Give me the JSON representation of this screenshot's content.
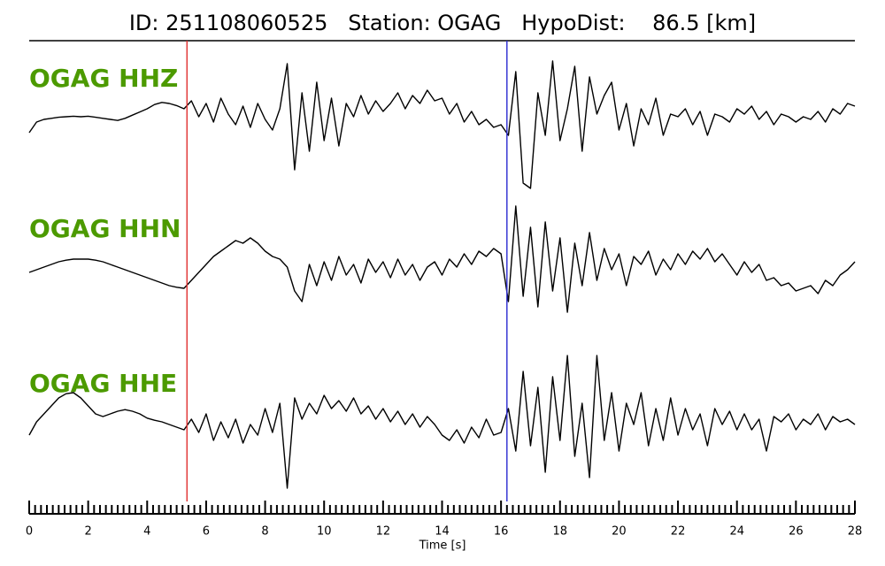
{
  "chart_data": {
    "type": "waveform",
    "title": "ID: 251108060525   Station: OGAG   HypoDist:    86.5 [km]",
    "xlabel": "Time [s]",
    "xlim": [
      0,
      28
    ],
    "xticks": [
      0,
      2,
      4,
      6,
      8,
      10,
      12,
      14,
      16,
      18,
      20,
      22,
      24,
      26,
      28
    ],
    "xminorticks": [
      0.2,
      0.4,
      0.6,
      0.8,
      1.0,
      1.2,
      1.4,
      1.6,
      1.8,
      2.2,
      2.4,
      2.6,
      2.8,
      3.0,
      3.2,
      3.4,
      3.6,
      3.8,
      4.2,
      4.4,
      4.6,
      4.8,
      5.0,
      5.2,
      5.4,
      5.6,
      5.8,
      6.2,
      6.4,
      6.6,
      6.8,
      7.0,
      7.2,
      7.4,
      7.6,
      7.8,
      8.2,
      8.4,
      8.6,
      8.8,
      9.0,
      9.2,
      9.4,
      9.6,
      9.8,
      10.2,
      10.4,
      10.6,
      10.8,
      11.0,
      11.2,
      11.4,
      11.6,
      11.8,
      12.2,
      12.4,
      12.6,
      12.8,
      13.0,
      13.2,
      13.4,
      13.6,
      13.8,
      14.2,
      14.4,
      14.6,
      14.8,
      15.0,
      15.2,
      15.4,
      15.6,
      15.8,
      16.2,
      16.4,
      16.6,
      16.8,
      17.0,
      17.2,
      17.4,
      17.6,
      17.8,
      18.2,
      18.4,
      18.6,
      18.8,
      19.0,
      19.2,
      19.4,
      19.6,
      19.8,
      20.2,
      20.4,
      20.6,
      20.8,
      21.0,
      21.2,
      21.4,
      21.6,
      21.8,
      22.2,
      22.4,
      22.6,
      22.8,
      23.0,
      23.2,
      23.4,
      23.6,
      23.8,
      24.2,
      24.4,
      24.6,
      24.8,
      25.0,
      25.2,
      25.4,
      25.6,
      25.8,
      26.2,
      26.4,
      26.6,
      26.8,
      27.0,
      27.2,
      27.4,
      27.6,
      27.8
    ],
    "label_color": "#4c9a00",
    "picks": [
      {
        "value": 5.35,
        "color": "#e03030"
      },
      {
        "value": 16.2,
        "color": "#2a2ad0"
      }
    ],
    "x": [
      0,
      0.25,
      0.5,
      0.75,
      1,
      1.25,
      1.5,
      1.75,
      2,
      2.25,
      2.5,
      2.75,
      3,
      3.25,
      3.5,
      3.75,
      4,
      4.25,
      4.5,
      4.75,
      5,
      5.25,
      5.5,
      5.75,
      6,
      6.25,
      6.5,
      6.75,
      7,
      7.25,
      7.5,
      7.75,
      8,
      8.25,
      8.5,
      8.75,
      9,
      9.25,
      9.5,
      9.75,
      10,
      10.25,
      10.5,
      10.75,
      11,
      11.25,
      11.5,
      11.75,
      12,
      12.25,
      12.5,
      12.75,
      13,
      13.25,
      13.5,
      13.75,
      14,
      14.25,
      14.5,
      14.75,
      15,
      15.25,
      15.5,
      15.75,
      16,
      16.25,
      16.5,
      16.75,
      17,
      17.25,
      17.5,
      17.75,
      18,
      18.25,
      18.5,
      18.75,
      19,
      19.25,
      19.5,
      19.75,
      20,
      20.25,
      20.5,
      20.75,
      21,
      21.25,
      21.5,
      21.75,
      22,
      22.25,
      22.5,
      22.75,
      23,
      23.25,
      23.5,
      23.75,
      24,
      24.25,
      24.5,
      24.75,
      25,
      25.25,
      25.5,
      25.75,
      26,
      26.25,
      26.5,
      26.75,
      27,
      27.25,
      27.5,
      27.75,
      28
    ],
    "series": [
      {
        "name": "OGAG HHZ",
        "color": "#000000",
        "values": [
          -0.25,
          -0.05,
          0.0,
          0.02,
          0.04,
          0.05,
          0.06,
          0.05,
          0.06,
          0.04,
          0.02,
          0.0,
          -0.02,
          0.02,
          0.08,
          0.14,
          0.2,
          0.28,
          0.32,
          0.3,
          0.26,
          0.2,
          0.35,
          0.05,
          0.3,
          -0.05,
          0.4,
          0.1,
          -0.1,
          0.25,
          -0.15,
          0.3,
          0.0,
          -0.2,
          0.2,
          1.05,
          -0.95,
          0.5,
          -0.6,
          0.7,
          -0.4,
          0.4,
          -0.5,
          0.3,
          0.05,
          0.45,
          0.1,
          0.35,
          0.15,
          0.3,
          0.5,
          0.2,
          0.45,
          0.3,
          0.55,
          0.35,
          0.4,
          0.1,
          0.3,
          -0.05,
          0.15,
          -0.1,
          0.0,
          -0.15,
          -0.1,
          -0.3,
          0.9,
          -1.2,
          -1.3,
          0.5,
          -0.3,
          1.1,
          -0.4,
          0.2,
          1.0,
          -0.6,
          0.8,
          0.1,
          0.45,
          0.7,
          -0.2,
          0.3,
          -0.5,
          0.2,
          -0.1,
          0.4,
          -0.3,
          0.1,
          0.05,
          0.2,
          -0.1,
          0.15,
          -0.3,
          0.1,
          0.05,
          -0.05,
          0.2,
          0.1,
          0.25,
          0.0,
          0.15,
          -0.1,
          0.1,
          0.05,
          -0.05,
          0.05,
          0.0,
          0.15,
          -0.05,
          0.2,
          0.1,
          0.3,
          0.25
        ]
      },
      {
        "name": "OGAG HHN",
        "color": "#000000",
        "values": [
          -0.05,
          0.0,
          0.05,
          0.1,
          0.15,
          0.18,
          0.2,
          0.2,
          0.2,
          0.18,
          0.15,
          0.1,
          0.05,
          0.0,
          -0.05,
          -0.1,
          -0.15,
          -0.2,
          -0.25,
          -0.3,
          -0.33,
          -0.35,
          -0.2,
          -0.05,
          0.1,
          0.25,
          0.35,
          0.45,
          0.55,
          0.5,
          0.6,
          0.5,
          0.35,
          0.25,
          0.2,
          0.05,
          -0.4,
          -0.6,
          0.1,
          -0.3,
          0.15,
          -0.2,
          0.25,
          -0.1,
          0.1,
          -0.25,
          0.2,
          -0.05,
          0.15,
          -0.15,
          0.2,
          -0.1,
          0.1,
          -0.2,
          0.05,
          0.15,
          -0.1,
          0.2,
          0.05,
          0.3,
          0.1,
          0.35,
          0.25,
          0.4,
          0.3,
          -0.6,
          1.2,
          -0.5,
          0.8,
          -0.7,
          0.9,
          -0.4,
          0.6,
          -0.8,
          0.5,
          -0.3,
          0.7,
          -0.2,
          0.4,
          0.0,
          0.3,
          -0.3,
          0.25,
          0.1,
          0.35,
          -0.1,
          0.2,
          0.0,
          0.3,
          0.1,
          0.35,
          0.2,
          0.4,
          0.15,
          0.3,
          0.1,
          -0.1,
          0.15,
          -0.05,
          0.1,
          -0.2,
          -0.15,
          -0.3,
          -0.25,
          -0.4,
          -0.35,
          -0.3,
          -0.45,
          -0.2,
          -0.3,
          -0.1,
          0.0,
          0.15
        ]
      },
      {
        "name": "OGAG HHE",
        "color": "#000000",
        "values": [
          -0.2,
          0.05,
          0.2,
          0.35,
          0.5,
          0.58,
          0.6,
          0.5,
          0.35,
          0.2,
          0.15,
          0.2,
          0.25,
          0.28,
          0.25,
          0.2,
          0.12,
          0.08,
          0.05,
          0.0,
          -0.05,
          -0.1,
          0.1,
          -0.15,
          0.2,
          -0.3,
          0.05,
          -0.25,
          0.1,
          -0.35,
          0.0,
          -0.2,
          0.3,
          -0.15,
          0.4,
          -1.2,
          0.5,
          0.1,
          0.4,
          0.2,
          0.55,
          0.3,
          0.45,
          0.25,
          0.5,
          0.2,
          0.35,
          0.1,
          0.3,
          0.05,
          0.25,
          0.0,
          0.2,
          -0.05,
          0.15,
          0.0,
          -0.2,
          -0.3,
          -0.1,
          -0.35,
          -0.05,
          -0.25,
          0.1,
          -0.2,
          -0.15,
          0.3,
          -0.5,
          1.0,
          -0.4,
          0.7,
          -0.9,
          0.9,
          -0.3,
          1.3,
          -0.6,
          0.4,
          -1.0,
          1.3,
          -0.3,
          0.6,
          -0.5,
          0.4,
          0.0,
          0.6,
          -0.4,
          0.3,
          -0.3,
          0.5,
          -0.2,
          0.3,
          -0.1,
          0.2,
          -0.4,
          0.3,
          0.0,
          0.25,
          -0.1,
          0.2,
          -0.1,
          0.1,
          -0.5,
          0.15,
          0.05,
          0.2,
          -0.1,
          0.1,
          0.0,
          0.2,
          -0.1,
          0.15,
          0.05,
          0.1,
          0.0
        ]
      }
    ]
  }
}
